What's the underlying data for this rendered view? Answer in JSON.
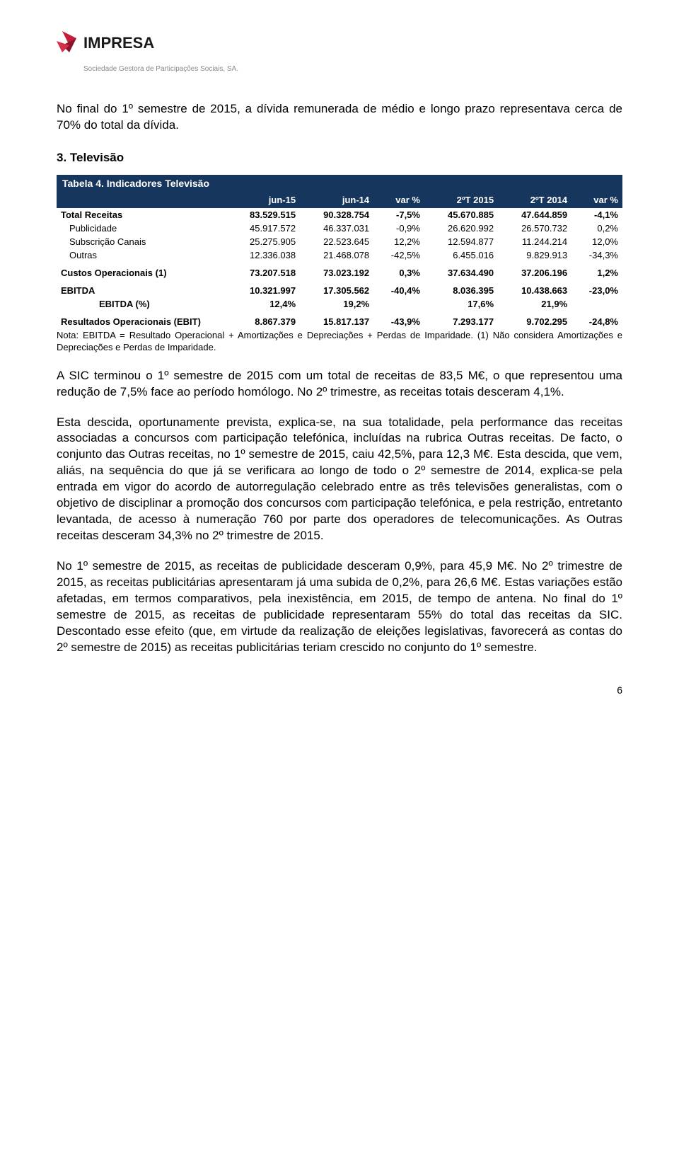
{
  "logo": {
    "brand": "IMPRESA",
    "subtitle": "Sociedade Gestora de Participações Sociais, SA."
  },
  "intro": "No final do 1º semestre de 2015, a dívida remunerada de médio e longo prazo representava cerca de 70% do total da dívida.",
  "section_heading": "3. Televisão",
  "table": {
    "title": "Tabela 4. Indicadores Televisão",
    "title_bg": "#17365d",
    "title_color": "#ffffff",
    "header_bg": "#17365d",
    "header_color": "#ffffff",
    "columns": [
      "",
      "jun-15",
      "jun-14",
      "var %",
      "2ºT 2015",
      "2ºT 2014",
      "var %"
    ],
    "rows": [
      {
        "type": "bold",
        "label": "Total Receitas",
        "v": [
          "83.529.515",
          "90.328.754",
          "-7,5%",
          "45.670.885",
          "47.644.859",
          "-4,1%"
        ]
      },
      {
        "type": "indent",
        "label": "Publicidade",
        "v": [
          "45.917.572",
          "46.337.031",
          "-0,9%",
          "26.620.992",
          "26.570.732",
          "0,2%"
        ]
      },
      {
        "type": "indent",
        "label": "Subscrição Canais",
        "v": [
          "25.275.905",
          "22.523.645",
          "12,2%",
          "12.594.877",
          "11.244.214",
          "12,0%"
        ]
      },
      {
        "type": "indent",
        "label": "Outras",
        "v": [
          "12.336.038",
          "21.468.078",
          "-42,5%",
          "6.455.016",
          "9.829.913",
          "-34,3%"
        ]
      },
      {
        "type": "spacer"
      },
      {
        "type": "bold",
        "label": "Custos Operacionais (1)",
        "v": [
          "73.207.518",
          "73.023.192",
          "0,3%",
          "37.634.490",
          "37.206.196",
          "1,2%"
        ]
      },
      {
        "type": "spacer"
      },
      {
        "type": "bold",
        "label": "EBITDA",
        "v": [
          "10.321.997",
          "17.305.562",
          "-40,4%",
          "8.036.395",
          "10.438.663",
          "-23,0%"
        ]
      },
      {
        "type": "indent2-bold",
        "label": "EBITDA (%)",
        "v": [
          "12,4%",
          "19,2%",
          "",
          "17,6%",
          "21,9%",
          ""
        ]
      },
      {
        "type": "spacer"
      },
      {
        "type": "bold",
        "label": "Resultados Operacionais (EBIT)",
        "v": [
          "8.867.379",
          "15.817.137",
          "-43,9%",
          "7.293.177",
          "9.702.295",
          "-24,8%"
        ]
      }
    ]
  },
  "note": "Nota: EBITDA = Resultado Operacional + Amortizações e Depreciações + Perdas de Imparidade. (1) Não considera Amortizações e Depreciações e Perdas de Imparidade.",
  "para1": "A SIC terminou o 1º semestre de 2015 com um total de receitas de 83,5 M€, o que representou uma redução de 7,5% face ao período homólogo. No 2º trimestre, as receitas totais desceram 4,1%.",
  "para2": "Esta descida, oportunamente prevista, explica-se, na sua totalidade, pela performance das receitas associadas a concursos com participação telefónica, incluídas na rubrica Outras receitas. De facto, o conjunto das Outras receitas, no 1º semestre de 2015, caiu 42,5%, para 12,3 M€. Esta descida, que vem, aliás, na sequência do que já se verificara ao longo de todo o 2º semestre de 2014, explica-se pela entrada em vigor do acordo de autorregulação celebrado entre as três televisões generalistas, com o objetivo de disciplinar a promoção dos concursos com participação telefónica, e pela restrição, entretanto levantada, de acesso à numeração 760 por parte dos operadores de telecomunicações. As Outras receitas desceram 34,3% no 2º trimestre de 2015.",
  "para3": "No 1º semestre de 2015, as receitas de publicidade desceram 0,9%, para 45,9 M€. No 2º trimestre de 2015, as receitas publicitárias apresentaram já uma subida de 0,2%, para 26,6 M€. Estas variações estão afetadas, em termos comparativos, pela inexistência, em 2015, de tempo de antena. No final do 1º semestre de 2015, as receitas de publicidade representaram 55% do total das receitas da SIC. Descontado esse efeito (que, em virtude da realização de eleições legislativas, favorecerá as contas do 2º semestre de 2015) as receitas publicitárias teriam crescido no conjunto do 1º semestre.",
  "page_number": "6",
  "colors": {
    "logo_red": "#c41e3a",
    "logo_dark": "#1a1a1a",
    "text": "#000000",
    "subtitle_gray": "#888888"
  }
}
